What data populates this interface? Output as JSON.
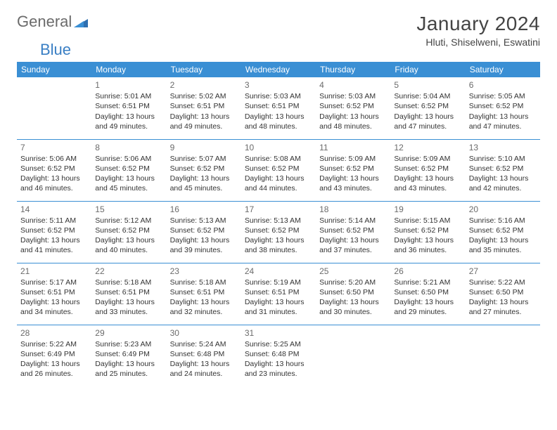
{
  "logo": {
    "text1": "General",
    "text2": "Blue"
  },
  "title": "January 2024",
  "location": "Hluti, Shiselweni, Eswatini",
  "colors": {
    "header_bg": "#3a8fd4",
    "header_text": "#ffffff",
    "row_border": "#3a8fd4",
    "daynum": "#6b6b6b",
    "body_text": "#333333",
    "logo_gray": "#6b6b6b",
    "logo_blue": "#3a7fc4"
  },
  "week_days": [
    "Sunday",
    "Monday",
    "Tuesday",
    "Wednesday",
    "Thursday",
    "Friday",
    "Saturday"
  ],
  "weeks": [
    [
      null,
      {
        "d": "1",
        "sr": "5:01 AM",
        "ss": "6:51 PM",
        "dl": "13 hours and 49 minutes."
      },
      {
        "d": "2",
        "sr": "5:02 AM",
        "ss": "6:51 PM",
        "dl": "13 hours and 49 minutes."
      },
      {
        "d": "3",
        "sr": "5:03 AM",
        "ss": "6:51 PM",
        "dl": "13 hours and 48 minutes."
      },
      {
        "d": "4",
        "sr": "5:03 AM",
        "ss": "6:52 PM",
        "dl": "13 hours and 48 minutes."
      },
      {
        "d": "5",
        "sr": "5:04 AM",
        "ss": "6:52 PM",
        "dl": "13 hours and 47 minutes."
      },
      {
        "d": "6",
        "sr": "5:05 AM",
        "ss": "6:52 PM",
        "dl": "13 hours and 47 minutes."
      }
    ],
    [
      {
        "d": "7",
        "sr": "5:06 AM",
        "ss": "6:52 PM",
        "dl": "13 hours and 46 minutes."
      },
      {
        "d": "8",
        "sr": "5:06 AM",
        "ss": "6:52 PM",
        "dl": "13 hours and 45 minutes."
      },
      {
        "d": "9",
        "sr": "5:07 AM",
        "ss": "6:52 PM",
        "dl": "13 hours and 45 minutes."
      },
      {
        "d": "10",
        "sr": "5:08 AM",
        "ss": "6:52 PM",
        "dl": "13 hours and 44 minutes."
      },
      {
        "d": "11",
        "sr": "5:09 AM",
        "ss": "6:52 PM",
        "dl": "13 hours and 43 minutes."
      },
      {
        "d": "12",
        "sr": "5:09 AM",
        "ss": "6:52 PM",
        "dl": "13 hours and 43 minutes."
      },
      {
        "d": "13",
        "sr": "5:10 AM",
        "ss": "6:52 PM",
        "dl": "13 hours and 42 minutes."
      }
    ],
    [
      {
        "d": "14",
        "sr": "5:11 AM",
        "ss": "6:52 PM",
        "dl": "13 hours and 41 minutes."
      },
      {
        "d": "15",
        "sr": "5:12 AM",
        "ss": "6:52 PM",
        "dl": "13 hours and 40 minutes."
      },
      {
        "d": "16",
        "sr": "5:13 AM",
        "ss": "6:52 PM",
        "dl": "13 hours and 39 minutes."
      },
      {
        "d": "17",
        "sr": "5:13 AM",
        "ss": "6:52 PM",
        "dl": "13 hours and 38 minutes."
      },
      {
        "d": "18",
        "sr": "5:14 AM",
        "ss": "6:52 PM",
        "dl": "13 hours and 37 minutes."
      },
      {
        "d": "19",
        "sr": "5:15 AM",
        "ss": "6:52 PM",
        "dl": "13 hours and 36 minutes."
      },
      {
        "d": "20",
        "sr": "5:16 AM",
        "ss": "6:52 PM",
        "dl": "13 hours and 35 minutes."
      }
    ],
    [
      {
        "d": "21",
        "sr": "5:17 AM",
        "ss": "6:51 PM",
        "dl": "13 hours and 34 minutes."
      },
      {
        "d": "22",
        "sr": "5:18 AM",
        "ss": "6:51 PM",
        "dl": "13 hours and 33 minutes."
      },
      {
        "d": "23",
        "sr": "5:18 AM",
        "ss": "6:51 PM",
        "dl": "13 hours and 32 minutes."
      },
      {
        "d": "24",
        "sr": "5:19 AM",
        "ss": "6:51 PM",
        "dl": "13 hours and 31 minutes."
      },
      {
        "d": "25",
        "sr": "5:20 AM",
        "ss": "6:50 PM",
        "dl": "13 hours and 30 minutes."
      },
      {
        "d": "26",
        "sr": "5:21 AM",
        "ss": "6:50 PM",
        "dl": "13 hours and 29 minutes."
      },
      {
        "d": "27",
        "sr": "5:22 AM",
        "ss": "6:50 PM",
        "dl": "13 hours and 27 minutes."
      }
    ],
    [
      {
        "d": "28",
        "sr": "5:22 AM",
        "ss": "6:49 PM",
        "dl": "13 hours and 26 minutes."
      },
      {
        "d": "29",
        "sr": "5:23 AM",
        "ss": "6:49 PM",
        "dl": "13 hours and 25 minutes."
      },
      {
        "d": "30",
        "sr": "5:24 AM",
        "ss": "6:48 PM",
        "dl": "13 hours and 24 minutes."
      },
      {
        "d": "31",
        "sr": "5:25 AM",
        "ss": "6:48 PM",
        "dl": "13 hours and 23 minutes."
      },
      null,
      null,
      null
    ]
  ],
  "labels": {
    "sunrise": "Sunrise:",
    "sunset": "Sunset:",
    "daylight": "Daylight:"
  }
}
